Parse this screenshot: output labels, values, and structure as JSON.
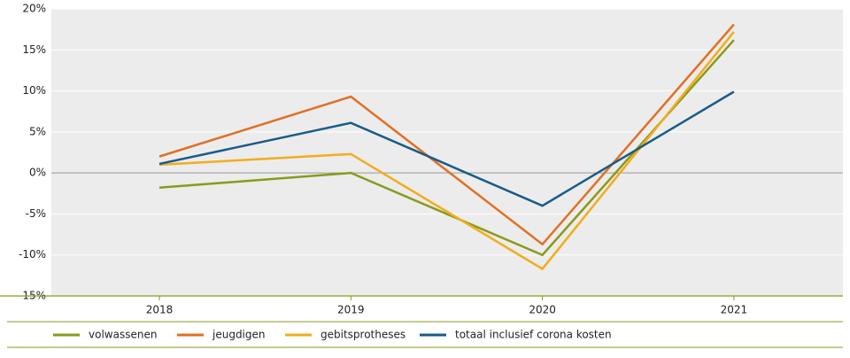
{
  "chart_data": {
    "type": "line",
    "categories": [
      "2018",
      "2019",
      "2020",
      "2021"
    ],
    "series": [
      {
        "name": "volwassenen",
        "color": "#8a9a1b",
        "values": [
          -1.8,
          0,
          -10,
          16.2
        ]
      },
      {
        "name": "jeugdigen",
        "color": "#e07023",
        "values": [
          2,
          9.3,
          -8.7,
          18.1
        ]
      },
      {
        "name": "gebitsprotheses",
        "color": "#f2ac1c",
        "values": [
          1,
          2.3,
          -11.7,
          17.2
        ]
      },
      {
        "name": "totaal inclusief corona kosten",
        "color": "#1a5b87",
        "values": [
          1.1,
          6.1,
          -4,
          9.9
        ]
      }
    ],
    "ylim": [
      -15,
      20
    ],
    "yticks": [
      {
        "value": -15,
        "label": "-15%"
      },
      {
        "value": -10,
        "label": "-10%"
      },
      {
        "value": -5,
        "label": "-5%"
      },
      {
        "value": 0,
        "label": "0%"
      },
      {
        "value": 5,
        "label": "5%"
      },
      {
        "value": 10,
        "label": "10%"
      },
      {
        "value": 15,
        "label": "15%"
      },
      {
        "value": 20,
        "label": "20%"
      }
    ],
    "grid": true,
    "legend": "bottom"
  }
}
